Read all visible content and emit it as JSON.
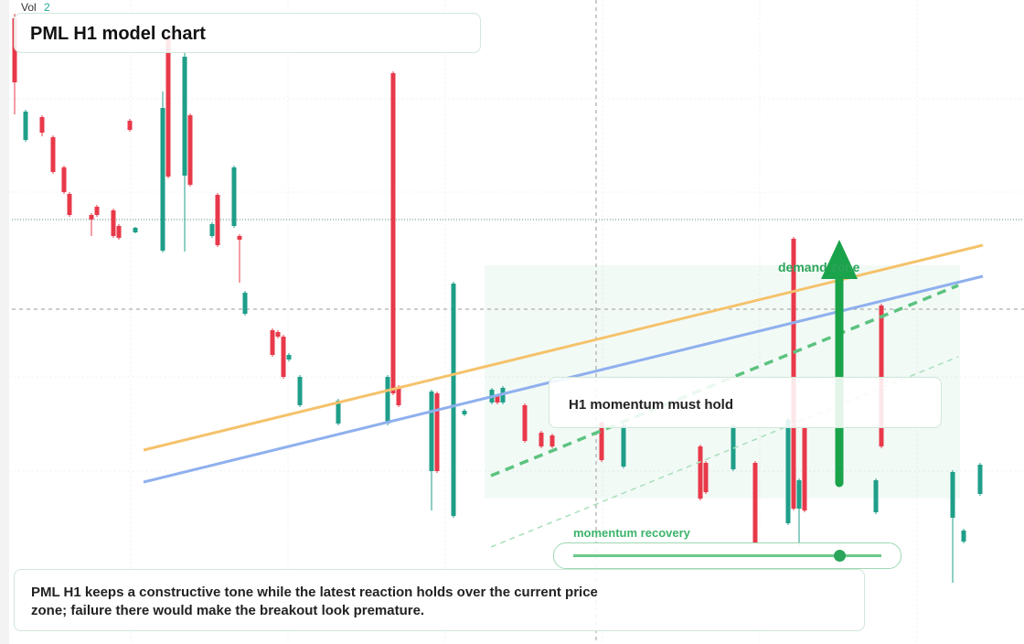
{
  "chart_data": {
    "type": "candlestick",
    "title": "PML H1 model chart",
    "volume_label": "Vol",
    "volume_value": 2,
    "annotations": [
      "demand zone",
      "H1 momentum must hold",
      "momentum recovery",
      "PML H1 keeps a constructive tone while the latest reaction holds over the current price zone; failure there would make the breakout look premature."
    ],
    "up_color": "#1f9e89",
    "down_color": "#e8394a",
    "xlim": [
      0,
      176
    ],
    "ylim": [
      0,
      70.4
    ],
    "x": [
      0,
      2,
      5,
      7,
      9,
      10,
      14,
      15,
      18,
      19,
      21,
      22,
      27,
      28,
      31,
      32,
      36,
      37,
      40,
      41,
      42,
      47,
      48,
      49,
      50,
      52,
      59,
      68,
      69,
      70,
      76,
      77,
      80,
      82,
      87,
      88,
      89,
      93,
      96,
      98,
      107,
      111,
      125,
      126,
      131,
      135,
      141,
      142,
      143,
      144,
      157,
      158,
      171,
      173,
      176
    ],
    "open": [
      68.4,
      55.1,
      57.6,
      55.4,
      52.1,
      49.2,
      46.9,
      47.8,
      47.4,
      45.7,
      57.2,
      45.0,
      43.0,
      66.4,
      51.2,
      57.8,
      44.6,
      49.1,
      45.7,
      44.6,
      36.1,
      34.3,
      34.1,
      33.6,
      31.1,
      26.1,
      24.1,
      24.1,
      62.4,
      28.1,
      18.9,
      27.4,
      14.0,
      25.1,
      26.4,
      27.1,
      26.4,
      26.1,
      23.1,
      22.8,
      24.2,
      19.4,
      21.6,
      19.8,
      19.1,
      19.8,
      13.2,
      44.3,
      14.8,
      23.6,
      14.4,
      37.0,
      13.8,
      11.2,
      16.4
    ],
    "high": [
      68.9,
      58.4,
      57.8,
      55.6,
      52.3,
      49.4,
      47.1,
      48.0,
      47.6,
      45.9,
      57.4,
      45.6,
      60.4,
      67.0,
      64.6,
      58.0,
      46.1,
      49.3,
      52.3,
      44.8,
      38.6,
      34.5,
      34.3,
      33.8,
      31.8,
      29.4,
      26.8,
      29.4,
      62.6,
      28.3,
      27.8,
      27.6,
      39.6,
      25.7,
      28.0,
      27.3,
      28.2,
      26.3,
      23.3,
      23.0,
      24.4,
      24.1,
      21.8,
      20.0,
      24.1,
      20.0,
      24.7,
      44.5,
      18.1,
      23.8,
      18.1,
      37.2,
      19.0,
      12.6,
      19.8
    ],
    "low": [
      57.9,
      54.9,
      55.5,
      51.4,
      49.2,
      46.7,
      44.6,
      46.7,
      44.4,
      44.2,
      56.0,
      44.9,
      42.8,
      50.9,
      42.9,
      50.0,
      44.4,
      43.4,
      45.5,
      39.5,
      35.9,
      31.4,
      33.4,
      29.0,
      30.9,
      25.9,
      23.9,
      23.9,
      27.2,
      25.9,
      14.6,
      18.7,
      13.8,
      24.9,
      26.2,
      26.2,
      26.2,
      22.0,
      21.4,
      21.4,
      19.9,
      19.2,
      15.7,
      16.4,
      18.9,
      10.8,
      13.0,
      14.6,
      10.7,
      14.4,
      14.2,
      21.4,
      6.7,
      11.0,
      16.2
    ],
    "close": [
      61.4,
      58.2,
      55.9,
      51.6,
      49.4,
      46.9,
      46.4,
      46.9,
      44.6,
      44.4,
      56.2,
      45.5,
      58.6,
      51.1,
      64.2,
      50.2,
      45.9,
      43.6,
      52.1,
      44.2,
      38.4,
      31.6,
      33.6,
      29.2,
      31.6,
      29.2,
      26.6,
      29.2,
      27.4,
      26.1,
      27.6,
      18.9,
      39.4,
      25.5,
      27.8,
      26.4,
      28.0,
      22.2,
      21.6,
      21.6,
      20.1,
      23.9,
      15.9,
      16.6,
      23.9,
      11.0,
      24.5,
      14.8,
      17.9,
      14.6,
      17.9,
      21.6,
      18.8,
      12.4,
      19.6
    ]
  }
}
